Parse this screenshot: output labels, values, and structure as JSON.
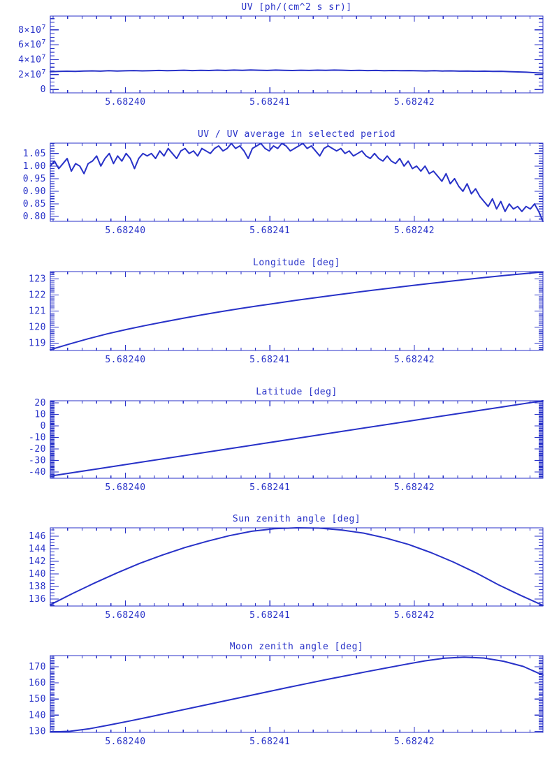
{
  "page": {
    "background": "#ffffff",
    "accent": "#2832c8"
  },
  "chart_data": [
    {
      "type": "line",
      "title": "UV [ph/(cm^2 s sr)]",
      "xlabel": "",
      "ylabel": "",
      "xlim": [
        5.6823948,
        5.6824289
      ],
      "xticks": [
        5.6824,
        5.68241,
        5.68242
      ],
      "xtick_labels": [
        "5.68240",
        "5.68241",
        "5.68242"
      ],
      "x_minor_interval": 1e-06,
      "ylim": [
        -4500000.0,
        98500000.0
      ],
      "yticks": [
        {
          "v": 0,
          "t": "0",
          "sup": ""
        },
        {
          "v": 20000000.0,
          "t": "2×10",
          "sup": "7"
        },
        {
          "v": 40000000.0,
          "t": "4×10",
          "sup": "7"
        },
        {
          "v": 60000000.0,
          "t": "6×10",
          "sup": "7"
        },
        {
          "v": 80000000.0,
          "t": "8×10",
          "sup": "7"
        }
      ],
      "y_minor_interval": 5000000.0,
      "grid": false,
      "legend": null,
      "values": [
        23800000.0,
        24200000.0,
        24500000.0,
        24300000.0,
        24700000.0,
        25000000.0,
        24600000.0,
        25200000.0,
        24800000.0,
        25100000.0,
        25400000.0,
        25000000.0,
        25300000.0,
        25600000.0,
        25200000.0,
        25500000.0,
        25800000.0,
        25400000.0,
        25700000.0,
        25500000.0,
        25900000.0,
        25600000.0,
        26000000.0,
        25700000.0,
        26100000.0,
        25800000.0,
        25600000.0,
        26000000.0,
        25700000.0,
        25500000.0,
        25800000.0,
        25600000.0,
        25900000.0,
        25700000.0,
        26000000.0,
        25800000.0,
        25500000.0,
        25700000.0,
        25400000.0,
        25600000.0,
        25300000.0,
        25500000.0,
        25200000.0,
        25400000.0,
        25100000.0,
        24900000.0,
        25200000.0,
        24800000.0,
        25000000.0,
        24600000.0,
        24800000.0,
        24400000.0,
        24600000.0,
        24200000.0,
        24400000.0,
        24000000.0,
        23600000.0,
        23200000.0,
        22600000.0,
        22000000.0
      ]
    },
    {
      "type": "line",
      "title": "UV / UV average in selected period",
      "xlabel": "",
      "ylabel": "",
      "xlim": [
        5.6823948,
        5.6824289
      ],
      "xticks": [
        5.6824,
        5.68241,
        5.68242
      ],
      "xtick_labels": [
        "5.68240",
        "5.68241",
        "5.68242"
      ],
      "x_minor_interval": 1e-06,
      "ylim": [
        0.781,
        1.091
      ],
      "yticks": [
        {
          "v": 0.8,
          "t": "0.80",
          "sup": ""
        },
        {
          "v": 0.85,
          "t": "0.85",
          "sup": ""
        },
        {
          "v": 0.9,
          "t": "0.90",
          "sup": ""
        },
        {
          "v": 0.95,
          "t": "0.95",
          "sup": ""
        },
        {
          "v": 1.0,
          "t": "1.00",
          "sup": ""
        },
        {
          "v": 1.05,
          "t": "1.05",
          "sup": ""
        }
      ],
      "y_minor_interval": 0.01,
      "grid": false,
      "legend": null,
      "values": [
        1.0,
        1.02,
        0.99,
        1.01,
        1.03,
        0.98,
        1.01,
        1.0,
        0.97,
        1.01,
        1.02,
        1.04,
        1.0,
        1.03,
        1.05,
        1.01,
        1.04,
        1.02,
        1.05,
        1.03,
        0.99,
        1.03,
        1.05,
        1.04,
        1.05,
        1.03,
        1.06,
        1.04,
        1.07,
        1.05,
        1.03,
        1.06,
        1.07,
        1.05,
        1.06,
        1.04,
        1.07,
        1.06,
        1.05,
        1.07,
        1.08,
        1.06,
        1.07,
        1.09,
        1.07,
        1.08,
        1.06,
        1.03,
        1.07,
        1.08,
        1.09,
        1.07,
        1.06,
        1.08,
        1.07,
        1.09,
        1.08,
        1.06,
        1.07,
        1.08,
        1.09,
        1.07,
        1.08,
        1.06,
        1.04,
        1.07,
        1.08,
        1.07,
        1.06,
        1.07,
        1.05,
        1.06,
        1.04,
        1.05,
        1.06,
        1.04,
        1.03,
        1.05,
        1.03,
        1.02,
        1.04,
        1.02,
        1.01,
        1.03,
        1.0,
        1.02,
        0.99,
        1.0,
        0.98,
        1.0,
        0.97,
        0.98,
        0.96,
        0.94,
        0.97,
        0.93,
        0.95,
        0.92,
        0.9,
        0.93,
        0.89,
        0.91,
        0.88,
        0.86,
        0.84,
        0.87,
        0.83,
        0.86,
        0.82,
        0.85,
        0.83,
        0.84,
        0.82,
        0.84,
        0.83,
        0.85,
        0.82,
        0.78
      ]
    },
    {
      "type": "line",
      "title": "Longitude [deg]",
      "xlabel": "",
      "ylabel": "",
      "xlim": [
        5.6823948,
        5.6824289
      ],
      "xticks": [
        5.6824,
        5.68241,
        5.68242
      ],
      "xtick_labels": [
        "5.68240",
        "5.68241",
        "5.68242"
      ],
      "x_minor_interval": 1e-06,
      "ylim": [
        118.55,
        123.45
      ],
      "yticks": [
        {
          "v": 119,
          "t": "119",
          "sup": ""
        },
        {
          "v": 120,
          "t": "120",
          "sup": ""
        },
        {
          "v": 121,
          "t": "121",
          "sup": ""
        },
        {
          "v": 122,
          "t": "122",
          "sup": ""
        },
        {
          "v": 123,
          "t": "123",
          "sup": ""
        }
      ],
      "y_minor_interval": 0.125,
      "grid": false,
      "legend": null,
      "values": [
        118.6,
        118.95,
        119.28,
        119.58,
        119.85,
        120.1,
        120.33,
        120.55,
        120.76,
        120.96,
        121.15,
        121.33,
        121.5,
        121.67,
        121.83,
        121.99,
        122.14,
        122.29,
        122.43,
        122.57,
        122.71,
        122.84,
        122.97,
        123.09,
        123.21,
        123.32,
        123.43
      ]
    },
    {
      "type": "line",
      "title": "Latitude [deg]",
      "xlabel": "",
      "ylabel": "",
      "xlim": [
        5.6823948,
        5.6824289
      ],
      "xticks": [
        5.6824,
        5.68241,
        5.68242
      ],
      "xtick_labels": [
        "5.68240",
        "5.68241",
        "5.68242"
      ],
      "x_minor_interval": 1e-06,
      "ylim": [
        -45.5,
        21.8
      ],
      "yticks": [
        {
          "v": -40,
          "t": "-40",
          "sup": ""
        },
        {
          "v": -30,
          "t": "-30",
          "sup": ""
        },
        {
          "v": -20,
          "t": "-20",
          "sup": ""
        },
        {
          "v": -10,
          "t": "-10",
          "sup": ""
        },
        {
          "v": 0,
          "t": "0",
          "sup": ""
        },
        {
          "v": 10,
          "t": "10",
          "sup": ""
        },
        {
          "v": 20,
          "t": "20",
          "sup": ""
        }
      ],
      "y_minor_interval": 1,
      "grid": false,
      "legend": null,
      "values": [
        -43.6,
        -37.1,
        -30.5,
        -24.0,
        -17.4,
        -10.9,
        -4.3,
        2.3,
        8.8,
        15.3,
        21.8
      ]
    },
    {
      "type": "line",
      "title": "Sun zenith angle [deg]",
      "xlabel": "",
      "ylabel": "",
      "xlim": [
        5.6823948,
        5.6824289
      ],
      "xticks": [
        5.6824,
        5.68241,
        5.68242
      ],
      "xtick_labels": [
        "5.68240",
        "5.68241",
        "5.68242"
      ],
      "x_minor_interval": 1e-06,
      "ylim": [
        134.9,
        147.35
      ],
      "yticks": [
        {
          "v": 136,
          "t": "136",
          "sup": ""
        },
        {
          "v": 138,
          "t": "138",
          "sup": ""
        },
        {
          "v": 140,
          "t": "140",
          "sup": ""
        },
        {
          "v": 142,
          "t": "142",
          "sup": ""
        },
        {
          "v": 144,
          "t": "144",
          "sup": ""
        },
        {
          "v": 146,
          "t": "146",
          "sup": ""
        }
      ],
      "y_minor_interval": 0.5,
      "grid": false,
      "legend": null,
      "values": [
        135.1,
        136.9,
        138.6,
        140.2,
        141.7,
        143.0,
        144.2,
        145.2,
        146.1,
        146.8,
        147.2,
        147.35,
        147.3,
        147.0,
        146.5,
        145.7,
        144.7,
        143.4,
        141.9,
        140.2,
        138.3,
        136.6,
        135.0
      ]
    },
    {
      "type": "line",
      "title": "Moon zenith angle [deg]",
      "xlabel": "",
      "ylabel": "",
      "xlim": [
        5.6823948,
        5.6824289
      ],
      "xticks": [
        5.6824,
        5.68241,
        5.68242
      ],
      "xtick_labels": [
        "5.68240",
        "5.68241",
        "5.68242"
      ],
      "x_minor_interval": 1e-06,
      "ylim": [
        129.3,
        176.9
      ],
      "yticks": [
        {
          "v": 130,
          "t": "130",
          "sup": ""
        },
        {
          "v": 140,
          "t": "140",
          "sup": ""
        },
        {
          "v": 150,
          "t": "150",
          "sup": ""
        },
        {
          "v": 160,
          "t": "160",
          "sup": ""
        },
        {
          "v": 170,
          "t": "170",
          "sup": ""
        }
      ],
      "y_minor_interval": 1,
      "grid": false,
      "legend": null,
      "values": [
        129.5,
        130.0,
        131.6,
        133.9,
        136.3,
        138.8,
        141.4,
        144.0,
        146.6,
        149.2,
        151.8,
        154.4,
        157.0,
        159.5,
        162.0,
        164.4,
        166.8,
        169.1,
        171.4,
        173.6,
        175.3,
        175.9,
        175.4,
        173.4,
        170.2,
        164.8
      ]
    }
  ]
}
